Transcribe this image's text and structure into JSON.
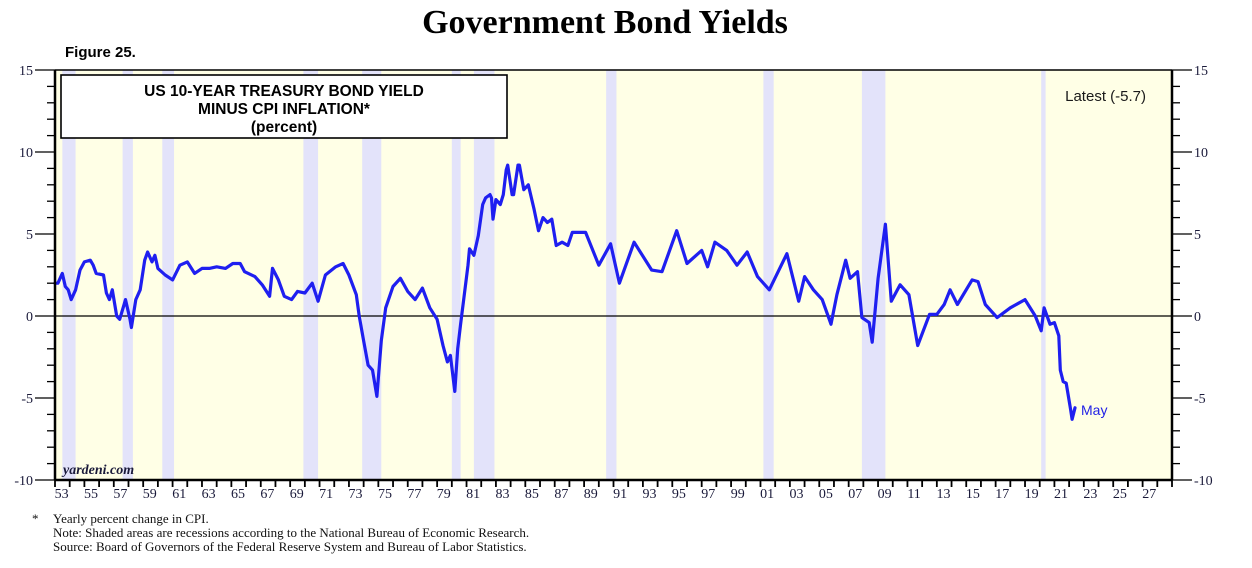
{
  "header": {
    "title": "Government Bond Yields",
    "figure_label": "Figure 25."
  },
  "chart_data": {
    "type": "line",
    "title": "US 10-YEAR TREASURY BOND YIELD",
    "title_line2": "MINUS CPI INFLATION*",
    "subtitle": "(percent)",
    "xlabel": "",
    "ylabel": "",
    "xlim": [
      1953,
      2029
    ],
    "ylim": [
      -10,
      15
    ],
    "grid": false,
    "y_ticks": [
      15,
      10,
      5,
      0,
      -5,
      -10
    ],
    "y_tick_labels": [
      "15",
      "10",
      "5",
      "0",
      "-5",
      "-10"
    ],
    "x_tick_labels": [
      "53",
      "55",
      "57",
      "59",
      "61",
      "63",
      "65",
      "67",
      "69",
      "71",
      "73",
      "75",
      "77",
      "79",
      "81",
      "83",
      "85",
      "87",
      "89",
      "91",
      "93",
      "95",
      "97",
      "99",
      "01",
      "03",
      "05",
      "07",
      "09",
      "11",
      "13",
      "15",
      "17",
      "19",
      "21",
      "23",
      "25",
      "27"
    ],
    "x_tick_years": [
      1953,
      1955,
      1957,
      1959,
      1961,
      1963,
      1965,
      1967,
      1969,
      1971,
      1973,
      1975,
      1977,
      1979,
      1981,
      1983,
      1985,
      1987,
      1989,
      1991,
      1993,
      1995,
      1997,
      1999,
      2001,
      2003,
      2005,
      2007,
      2009,
      2011,
      2013,
      2015,
      2017,
      2019,
      2021,
      2023,
      2025,
      2027
    ],
    "recessions": [
      [
        1953.5,
        1954.4
      ],
      [
        1957.6,
        1958.3
      ],
      [
        1960.3,
        1961.1
      ],
      [
        1969.9,
        1970.9
      ],
      [
        1973.9,
        1975.2
      ],
      [
        1980.0,
        1980.6
      ],
      [
        1981.5,
        1982.9
      ],
      [
        1990.5,
        1991.2
      ],
      [
        2001.2,
        2001.9
      ],
      [
        2007.9,
        2009.5
      ],
      [
        2020.1,
        2020.4
      ]
    ],
    "reference_line": 0,
    "series": [
      {
        "name": "US 10-Year Treasury Bond Yield minus CPI Inflation",
        "color": "#1f1ff0",
        "x": [
          1953.0,
          1953.2,
          1953.5,
          1953.7,
          1953.9,
          1954.1,
          1954.4,
          1954.7,
          1955.0,
          1955.4,
          1955.6,
          1955.8,
          1956.3,
          1956.5,
          1956.7,
          1956.9,
          1957.2,
          1957.4,
          1957.7,
          1957.8,
          1958.1,
          1958.2,
          1958.5,
          1958.8,
          1959.1,
          1959.3,
          1959.6,
          1959.8,
          1960.0,
          1960.5,
          1961.0,
          1961.5,
          1962.0,
          1962.5,
          1963.0,
          1963.5,
          1964.0,
          1964.6,
          1965.1,
          1965.6,
          1965.9,
          1966.6,
          1967.1,
          1967.6,
          1967.8,
          1968.2,
          1968.6,
          1969.1,
          1969.5,
          1970.0,
          1970.5,
          1970.9,
          1971.4,
          1972.1,
          1972.6,
          1973.0,
          1973.5,
          1973.7,
          1974.0,
          1974.3,
          1974.6,
          1974.9,
          1975.2,
          1975.5,
          1976.0,
          1976.5,
          1977.0,
          1977.5,
          1978.0,
          1978.5,
          1979.0,
          1979.4,
          1979.7,
          1979.9,
          1980.2,
          1980.4,
          1980.6,
          1981.1,
          1981.2,
          1981.5,
          1981.8,
          1982.1,
          1982.3,
          1982.6,
          1982.7,
          1982.8,
          1983.0,
          1983.3,
          1983.5,
          1983.7,
          1983.8,
          1984.1,
          1984.2,
          1984.5,
          1984.6,
          1984.9,
          1985.2,
          1985.6,
          1985.9,
          1986.2,
          1986.5,
          1986.8,
          1987.1,
          1987.5,
          1987.9,
          1988.2,
          1989.1,
          1990.0,
          1990.8,
          1991.4,
          1992.4,
          1993.6,
          1994.3,
          1995.3,
          1996.0,
          1997.0,
          1997.4,
          1997.9,
          1998.7,
          1999.4,
          2000.1,
          2000.8,
          2001.6,
          2002.8,
          2003.6,
          2004.0,
          2004.6,
          2005.2,
          2005.8,
          2006.2,
          2006.8,
          2007.1,
          2007.6,
          2007.9,
          2008.4,
          2008.6,
          2009.0,
          2009.5,
          2009.9,
          2010.5,
          2011.1,
          2011.7,
          2012.5,
          2013.0,
          2013.5,
          2013.9,
          2014.4,
          2015.4,
          2015.8,
          2016.3,
          2017.1,
          2018.0,
          2019.0,
          2019.7,
          2020.1,
          2020.3,
          2020.7,
          2021.0,
          2021.3,
          2021.4,
          2021.6,
          2021.8,
          2022.1,
          2022.2,
          2022.4
        ],
        "y": [
          2.0,
          2.0,
          2.6,
          1.8,
          1.6,
          1.0,
          1.6,
          2.8,
          3.3,
          3.4,
          3.1,
          2.6,
          2.5,
          1.4,
          1.0,
          1.6,
          0.0,
          -0.2,
          0.7,
          1.0,
          -0.2,
          -0.7,
          1.0,
          1.6,
          3.4,
          3.9,
          3.3,
          3.7,
          2.9,
          2.5,
          2.2,
          3.1,
          3.3,
          2.6,
          2.9,
          2.9,
          3.0,
          2.9,
          3.2,
          3.2,
          2.7,
          2.4,
          1.9,
          1.2,
          2.9,
          2.2,
          1.2,
          1.0,
          1.5,
          1.4,
          2.0,
          0.9,
          2.5,
          3.0,
          3.2,
          2.5,
          1.3,
          0.0,
          -1.5,
          -3.0,
          -3.3,
          -4.9,
          -1.5,
          0.5,
          1.8,
          2.3,
          1.5,
          1.0,
          1.7,
          0.5,
          -0.2,
          -1.8,
          -2.8,
          -2.4,
          -4.6,
          -2.0,
          -0.5,
          3.1,
          4.1,
          3.7,
          4.9,
          6.8,
          7.2,
          7.4,
          7.2,
          5.9,
          7.1,
          6.8,
          7.4,
          8.9,
          9.2,
          7.4,
          7.4,
          9.2,
          9.2,
          7.7,
          8.0,
          6.5,
          5.2,
          6.0,
          5.7,
          5.9,
          4.3,
          4.5,
          4.3,
          5.1,
          5.1,
          3.1,
          4.4,
          2.0,
          4.5,
          2.8,
          2.7,
          5.2,
          3.2,
          4.0,
          3.0,
          4.5,
          4.0,
          3.1,
          3.9,
          2.4,
          1.6,
          3.8,
          0.9,
          2.4,
          1.6,
          1.0,
          -0.5,
          1.3,
          3.4,
          2.3,
          2.7,
          -0.1,
          -0.4,
          -1.6,
          2.3,
          5.6,
          0.9,
          1.9,
          1.3,
          -1.8,
          0.1,
          0.1,
          0.7,
          1.6,
          0.7,
          2.2,
          2.1,
          0.7,
          -0.1,
          0.5,
          1.0,
          0.0,
          -0.9,
          0.5,
          -0.5,
          -0.4,
          -1.2,
          -3.3,
          -4.0,
          -4.1,
          -5.7,
          -6.3,
          -5.6
        ]
      }
    ],
    "annotations": {
      "latest": "Latest (-5.7)",
      "end_label": "May",
      "source_watermark": "yardeni.com"
    },
    "colors": {
      "plot_background": "#ffffe6",
      "recession_shade": "#e3e3fa",
      "line": "#1f1ff0"
    }
  },
  "footnotes": {
    "asterisk": "*",
    "line1": "Yearly percent change in CPI.",
    "line2": "Note: Shaded areas are recessions according to the National Bureau of Economic Research.",
    "line3": "Source: Board of Governors of the Federal Reserve System and Bureau of Labor Statistics."
  }
}
